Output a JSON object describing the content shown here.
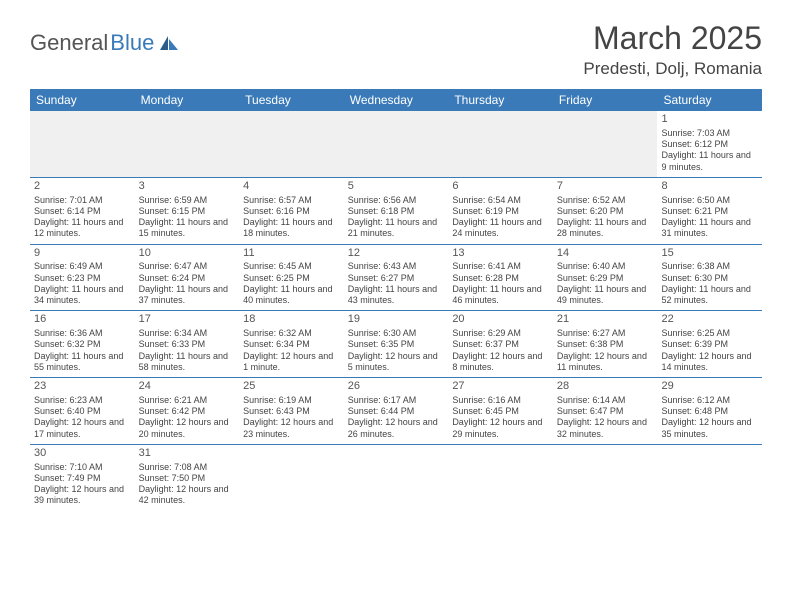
{
  "logo": {
    "text1": "General",
    "text2": "Blue"
  },
  "title": "March 2025",
  "location": "Predesti, Dolj, Romania",
  "dayHeaders": [
    "Sunday",
    "Monday",
    "Tuesday",
    "Wednesday",
    "Thursday",
    "Friday",
    "Saturday"
  ],
  "colors": {
    "headerBlue": "#3a7ab8",
    "blankBg": "#f0f0f0",
    "text": "#444444"
  },
  "weeks": [
    [
      {
        "blank": true
      },
      {
        "blank": true
      },
      {
        "blank": true
      },
      {
        "blank": true
      },
      {
        "blank": true
      },
      {
        "blank": true
      },
      {
        "day": "1",
        "sunrise": "Sunrise: 7:03 AM",
        "sunset": "Sunset: 6:12 PM",
        "daylight": "Daylight: 11 hours and 9 minutes."
      }
    ],
    [
      {
        "day": "2",
        "sunrise": "Sunrise: 7:01 AM",
        "sunset": "Sunset: 6:14 PM",
        "daylight": "Daylight: 11 hours and 12 minutes."
      },
      {
        "day": "3",
        "sunrise": "Sunrise: 6:59 AM",
        "sunset": "Sunset: 6:15 PM",
        "daylight": "Daylight: 11 hours and 15 minutes."
      },
      {
        "day": "4",
        "sunrise": "Sunrise: 6:57 AM",
        "sunset": "Sunset: 6:16 PM",
        "daylight": "Daylight: 11 hours and 18 minutes."
      },
      {
        "day": "5",
        "sunrise": "Sunrise: 6:56 AM",
        "sunset": "Sunset: 6:18 PM",
        "daylight": "Daylight: 11 hours and 21 minutes."
      },
      {
        "day": "6",
        "sunrise": "Sunrise: 6:54 AM",
        "sunset": "Sunset: 6:19 PM",
        "daylight": "Daylight: 11 hours and 24 minutes."
      },
      {
        "day": "7",
        "sunrise": "Sunrise: 6:52 AM",
        "sunset": "Sunset: 6:20 PM",
        "daylight": "Daylight: 11 hours and 28 minutes."
      },
      {
        "day": "8",
        "sunrise": "Sunrise: 6:50 AM",
        "sunset": "Sunset: 6:21 PM",
        "daylight": "Daylight: 11 hours and 31 minutes."
      }
    ],
    [
      {
        "day": "9",
        "sunrise": "Sunrise: 6:49 AM",
        "sunset": "Sunset: 6:23 PM",
        "daylight": "Daylight: 11 hours and 34 minutes."
      },
      {
        "day": "10",
        "sunrise": "Sunrise: 6:47 AM",
        "sunset": "Sunset: 6:24 PM",
        "daylight": "Daylight: 11 hours and 37 minutes."
      },
      {
        "day": "11",
        "sunrise": "Sunrise: 6:45 AM",
        "sunset": "Sunset: 6:25 PM",
        "daylight": "Daylight: 11 hours and 40 minutes."
      },
      {
        "day": "12",
        "sunrise": "Sunrise: 6:43 AM",
        "sunset": "Sunset: 6:27 PM",
        "daylight": "Daylight: 11 hours and 43 minutes."
      },
      {
        "day": "13",
        "sunrise": "Sunrise: 6:41 AM",
        "sunset": "Sunset: 6:28 PM",
        "daylight": "Daylight: 11 hours and 46 minutes."
      },
      {
        "day": "14",
        "sunrise": "Sunrise: 6:40 AM",
        "sunset": "Sunset: 6:29 PM",
        "daylight": "Daylight: 11 hours and 49 minutes."
      },
      {
        "day": "15",
        "sunrise": "Sunrise: 6:38 AM",
        "sunset": "Sunset: 6:30 PM",
        "daylight": "Daylight: 11 hours and 52 minutes."
      }
    ],
    [
      {
        "day": "16",
        "sunrise": "Sunrise: 6:36 AM",
        "sunset": "Sunset: 6:32 PM",
        "daylight": "Daylight: 11 hours and 55 minutes."
      },
      {
        "day": "17",
        "sunrise": "Sunrise: 6:34 AM",
        "sunset": "Sunset: 6:33 PM",
        "daylight": "Daylight: 11 hours and 58 minutes."
      },
      {
        "day": "18",
        "sunrise": "Sunrise: 6:32 AM",
        "sunset": "Sunset: 6:34 PM",
        "daylight": "Daylight: 12 hours and 1 minute."
      },
      {
        "day": "19",
        "sunrise": "Sunrise: 6:30 AM",
        "sunset": "Sunset: 6:35 PM",
        "daylight": "Daylight: 12 hours and 5 minutes."
      },
      {
        "day": "20",
        "sunrise": "Sunrise: 6:29 AM",
        "sunset": "Sunset: 6:37 PM",
        "daylight": "Daylight: 12 hours and 8 minutes."
      },
      {
        "day": "21",
        "sunrise": "Sunrise: 6:27 AM",
        "sunset": "Sunset: 6:38 PM",
        "daylight": "Daylight: 12 hours and 11 minutes."
      },
      {
        "day": "22",
        "sunrise": "Sunrise: 6:25 AM",
        "sunset": "Sunset: 6:39 PM",
        "daylight": "Daylight: 12 hours and 14 minutes."
      }
    ],
    [
      {
        "day": "23",
        "sunrise": "Sunrise: 6:23 AM",
        "sunset": "Sunset: 6:40 PM",
        "daylight": "Daylight: 12 hours and 17 minutes."
      },
      {
        "day": "24",
        "sunrise": "Sunrise: 6:21 AM",
        "sunset": "Sunset: 6:42 PM",
        "daylight": "Daylight: 12 hours and 20 minutes."
      },
      {
        "day": "25",
        "sunrise": "Sunrise: 6:19 AM",
        "sunset": "Sunset: 6:43 PM",
        "daylight": "Daylight: 12 hours and 23 minutes."
      },
      {
        "day": "26",
        "sunrise": "Sunrise: 6:17 AM",
        "sunset": "Sunset: 6:44 PM",
        "daylight": "Daylight: 12 hours and 26 minutes."
      },
      {
        "day": "27",
        "sunrise": "Sunrise: 6:16 AM",
        "sunset": "Sunset: 6:45 PM",
        "daylight": "Daylight: 12 hours and 29 minutes."
      },
      {
        "day": "28",
        "sunrise": "Sunrise: 6:14 AM",
        "sunset": "Sunset: 6:47 PM",
        "daylight": "Daylight: 12 hours and 32 minutes."
      },
      {
        "day": "29",
        "sunrise": "Sunrise: 6:12 AM",
        "sunset": "Sunset: 6:48 PM",
        "daylight": "Daylight: 12 hours and 35 minutes."
      }
    ],
    [
      {
        "day": "30",
        "sunrise": "Sunrise: 7:10 AM",
        "sunset": "Sunset: 7:49 PM",
        "daylight": "Daylight: 12 hours and 39 minutes."
      },
      {
        "day": "31",
        "sunrise": "Sunrise: 7:08 AM",
        "sunset": "Sunset: 7:50 PM",
        "daylight": "Daylight: 12 hours and 42 minutes."
      },
      {
        "blank": true
      },
      {
        "blank": true
      },
      {
        "blank": true
      },
      {
        "blank": true
      },
      {
        "blank": true
      }
    ]
  ]
}
